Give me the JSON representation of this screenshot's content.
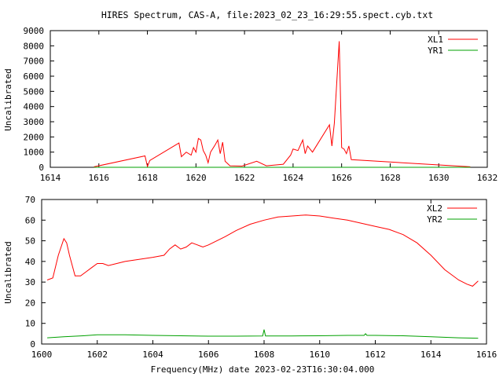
{
  "figure": {
    "title": "HIRES Spectrum, CAS-A, file:2023_02_23_16:29:55.spect.cyb.txt",
    "xlabel": "Frequency(MHz) date 2023-02-23T16:30:04.000"
  },
  "colors": {
    "red": "#ff0000",
    "green": "#00a000"
  },
  "chart_data": [
    {
      "type": "line",
      "ylabel": "Uncalibrated",
      "xlim": [
        1614,
        1632
      ],
      "ylim": [
        0,
        9000
      ],
      "xticks": [
        1614,
        1616,
        1618,
        1620,
        1622,
        1624,
        1626,
        1628,
        1630,
        1632
      ],
      "yticks": [
        0,
        1000,
        2000,
        3000,
        4000,
        5000,
        6000,
        7000,
        8000,
        9000
      ],
      "legend_position": "top-right",
      "grid": false,
      "series": [
        {
          "name": "XL1",
          "color": "#ff0000",
          "x": [
            1615.8,
            1617.9,
            1618.0,
            1618.1,
            1619.3,
            1619.4,
            1619.6,
            1619.8,
            1619.9,
            1620.0,
            1620.1,
            1620.2,
            1620.3,
            1620.4,
            1620.5,
            1620.6,
            1620.8,
            1620.9,
            1621.0,
            1621.1,
            1621.2,
            1621.4,
            1621.9,
            1622.5,
            1622.9,
            1623.6,
            1623.9,
            1624.0,
            1624.2,
            1624.4,
            1624.5,
            1624.6,
            1624.8,
            1625.5,
            1625.6,
            1625.7,
            1625.9,
            1626.0,
            1626.1,
            1626.2,
            1626.3,
            1626.4,
            1631.3
          ],
          "y": [
            30,
            750,
            50,
            450,
            1600,
            700,
            1000,
            800,
            1300,
            1000,
            1900,
            1800,
            1100,
            800,
            300,
            1000,
            1500,
            1800,
            900,
            1650,
            400,
            100,
            80,
            400,
            100,
            200,
            800,
            1200,
            1100,
            1800,
            900,
            1400,
            1000,
            2800,
            1400,
            2900,
            8300,
            1300,
            1200,
            900,
            1400,
            500,
            30
          ]
        },
        {
          "name": "YR1",
          "color": "#00a000",
          "x": [
            1615.8,
            1631.3
          ],
          "y": [
            0,
            0
          ]
        }
      ]
    },
    {
      "type": "line",
      "ylabel": "Uncalibrated",
      "xlim": [
        1600,
        1616
      ],
      "ylim": [
        0,
        70
      ],
      "xticks": [
        1600,
        1602,
        1604,
        1606,
        1608,
        1610,
        1612,
        1614,
        1616
      ],
      "yticks": [
        0,
        10,
        20,
        30,
        40,
        50,
        60,
        70
      ],
      "legend_position": "top-right",
      "grid": false,
      "series": [
        {
          "name": "XL2",
          "color": "#ff0000",
          "x": [
            1600.2,
            1600.4,
            1600.6,
            1600.8,
            1600.9,
            1601.0,
            1601.2,
            1601.4,
            1601.6,
            1601.8,
            1602.0,
            1602.2,
            1602.4,
            1602.7,
            1603.0,
            1603.5,
            1604.0,
            1604.4,
            1604.6,
            1604.8,
            1605.0,
            1605.2,
            1605.4,
            1605.6,
            1605.8,
            1606.0,
            1606.3,
            1606.6,
            1607.0,
            1607.5,
            1608.0,
            1608.5,
            1609.0,
            1609.5,
            1610.0,
            1610.5,
            1611.0,
            1611.5,
            1612.0,
            1612.5,
            1613.0,
            1613.5,
            1614.0,
            1614.5,
            1615.0,
            1615.3,
            1615.5,
            1615.7
          ],
          "y": [
            31,
            32,
            43,
            51,
            49,
            43,
            33,
            33,
            35,
            37,
            39,
            39,
            38,
            39,
            40,
            41,
            42,
            43,
            46,
            48,
            46,
            47,
            49,
            48,
            47,
            48,
            50,
            52,
            55,
            58,
            60,
            61.5,
            62,
            62.5,
            62,
            61,
            60,
            58.5,
            57,
            55.5,
            53,
            49,
            43,
            36,
            31,
            29,
            28,
            30.5
          ]
        },
        {
          "name": "YR2",
          "color": "#00a000",
          "x": [
            1600.2,
            1600.8,
            1601.5,
            1602.0,
            1603.0,
            1604.0,
            1605.0,
            1606.0,
            1607.0,
            1607.95,
            1608.0,
            1608.05,
            1609.0,
            1610.0,
            1611.0,
            1611.6,
            1611.65,
            1611.7,
            1612.0,
            1613.0,
            1614.0,
            1615.0,
            1615.7
          ],
          "y": [
            3,
            3.5,
            4,
            4.5,
            4.5,
            4.2,
            4.0,
            3.8,
            3.8,
            3.9,
            7,
            3.9,
            3.9,
            4.0,
            4.2,
            4.2,
            5,
            4.2,
            4.2,
            4.0,
            3.5,
            3.0,
            2.8
          ]
        }
      ]
    }
  ]
}
